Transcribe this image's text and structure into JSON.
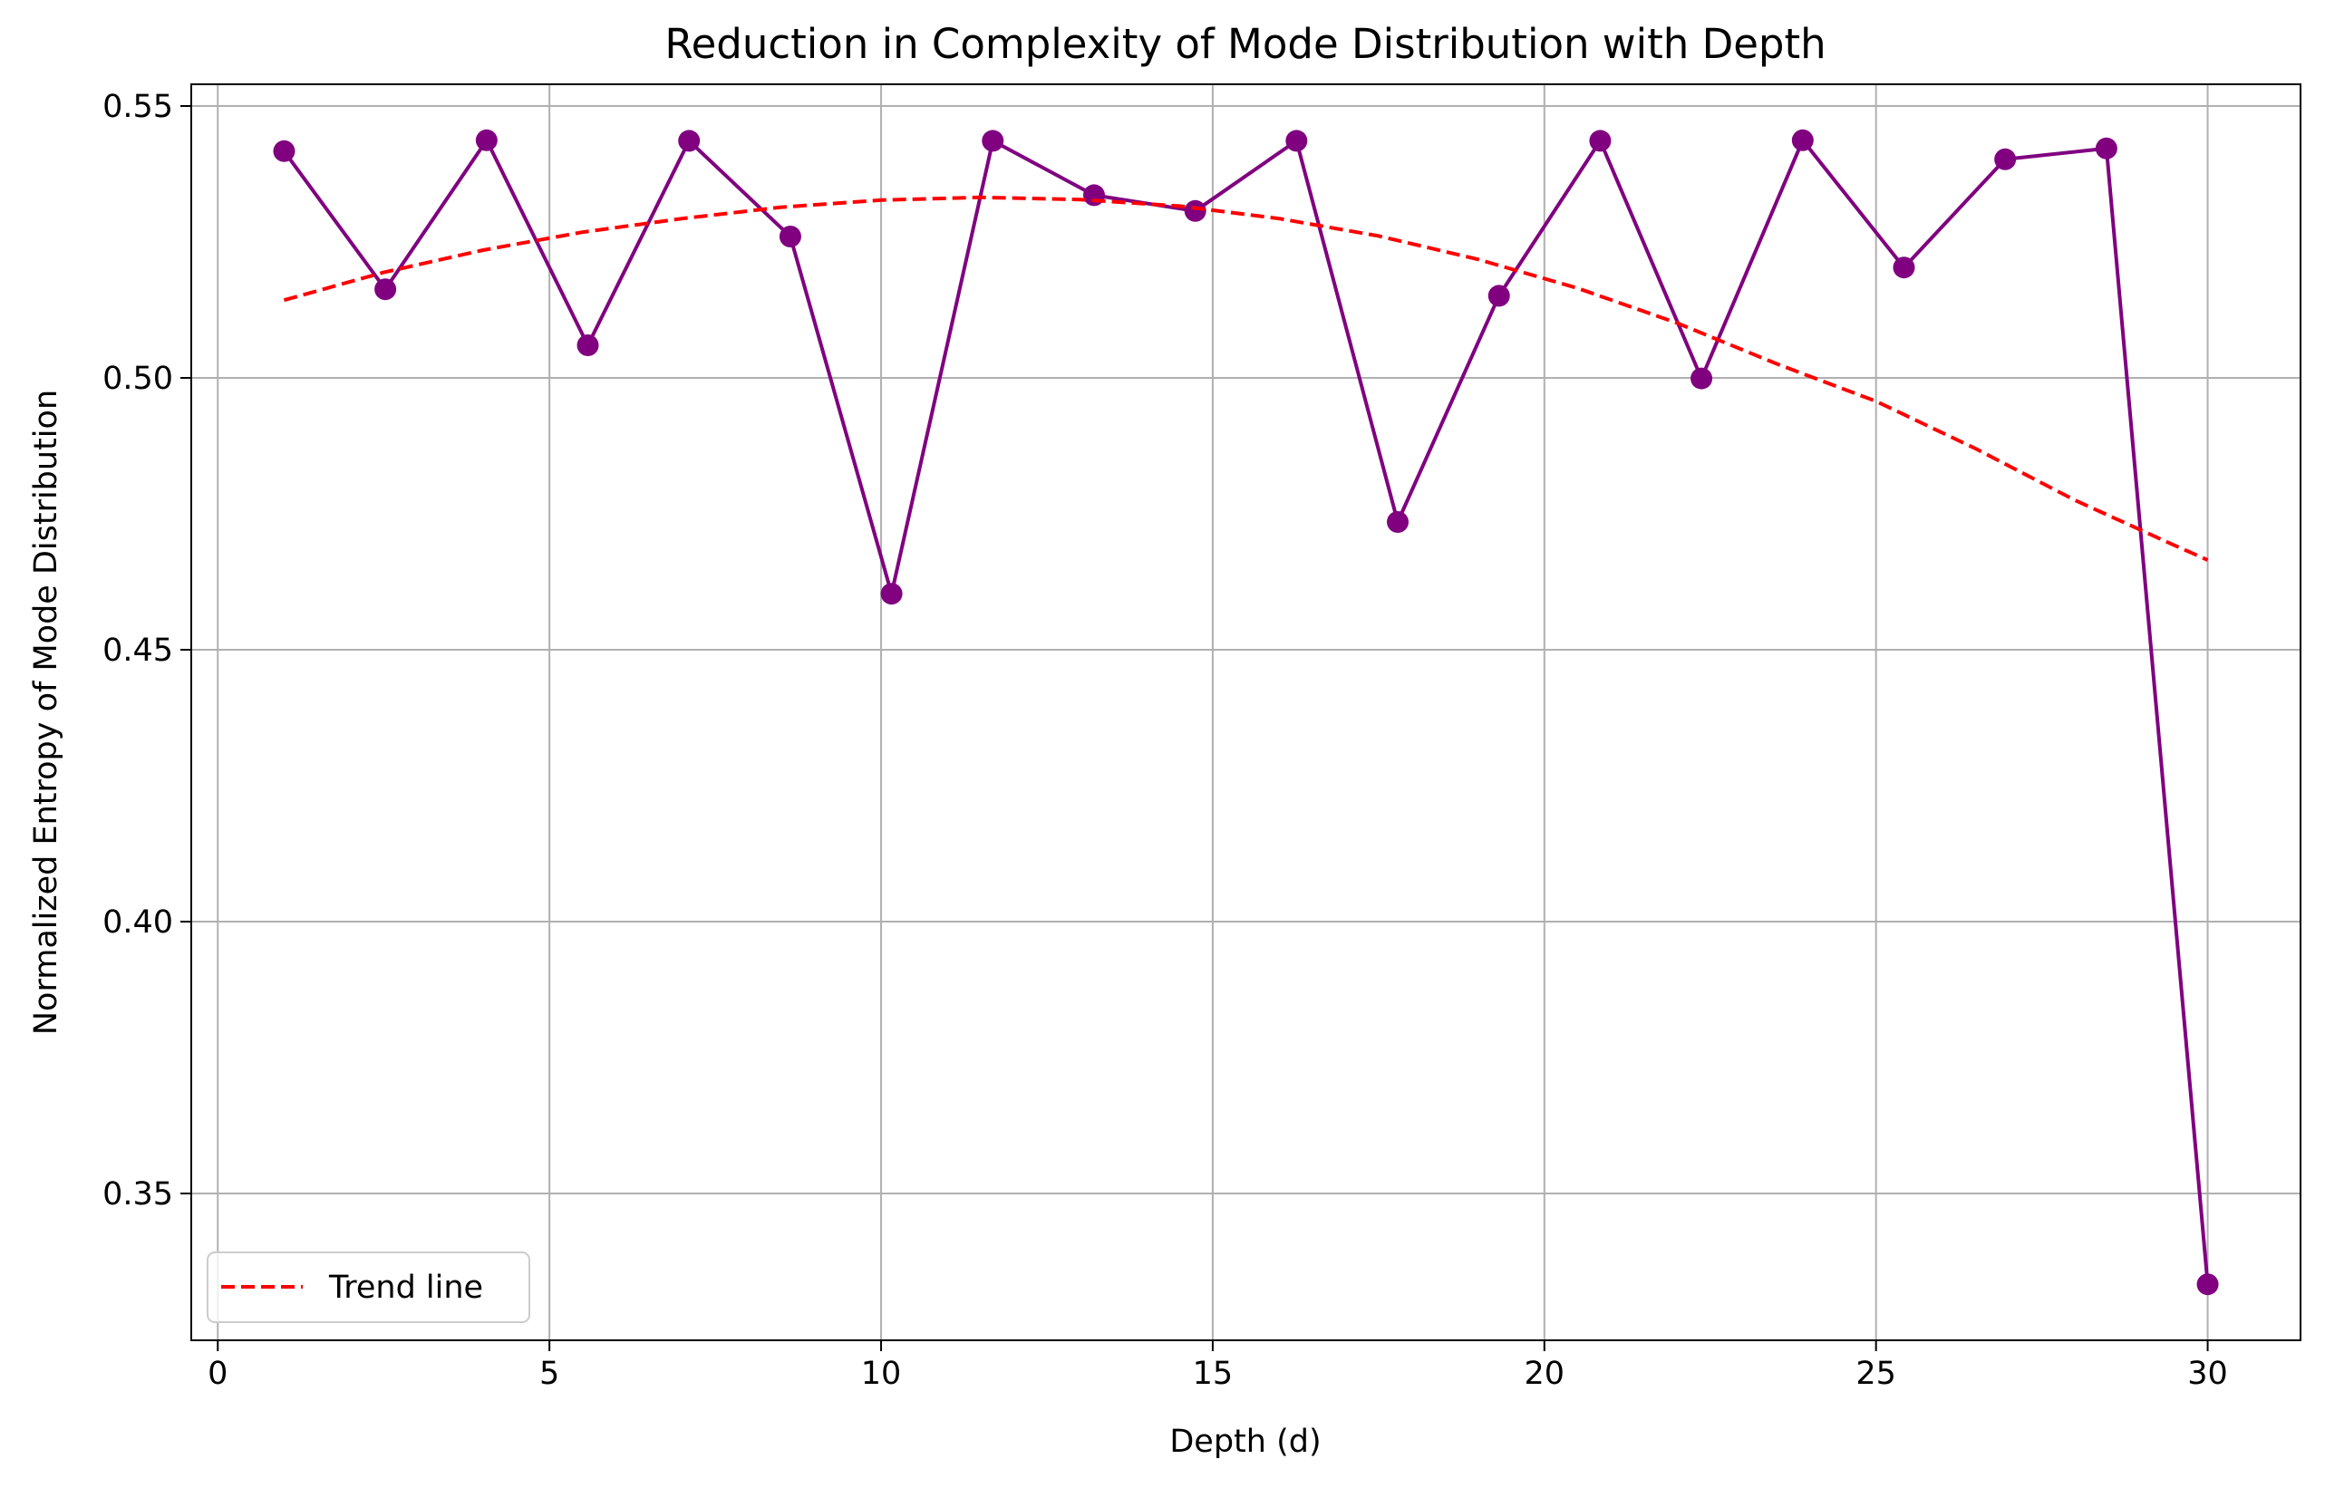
{
  "chart_data": {
    "type": "line",
    "title": "Reduction in Complexity of Mode Distribution with Depth",
    "xlabel": "Depth (d)",
    "ylabel": "Normalized Entropy of Mode Distribution",
    "xlim": [
      -0.4,
      31.4
    ],
    "ylim": [
      0.323,
      0.554
    ],
    "xticks": [
      0,
      5,
      10,
      15,
      20,
      25,
      30
    ],
    "yticks": [
      0.35,
      0.4,
      0.45,
      0.5,
      0.55
    ],
    "xtick_labels": [
      "0",
      "5",
      "10",
      "15",
      "20",
      "25",
      "30"
    ],
    "ytick_labels": [
      "0.35",
      "0.40",
      "0.45",
      "0.50",
      "0.55"
    ],
    "grid": true,
    "legend_position": "lower-left",
    "series": [
      {
        "kind": "data",
        "color": "#800080",
        "marker": "circle",
        "x": [
          1.0,
          2.526,
          4.053,
          5.579,
          7.105,
          8.632,
          10.158,
          11.684,
          13.211,
          14.737,
          16.263,
          17.789,
          19.316,
          20.842,
          22.368,
          23.895,
          25.421,
          26.947,
          28.474,
          30.0
        ],
        "y": [
          0.5417,
          0.5163,
          0.5437,
          0.506,
          0.5436,
          0.526,
          0.4603,
          0.5436,
          0.5336,
          0.5307,
          0.5436,
          0.4735,
          0.5151,
          0.5436,
          0.4999,
          0.5437,
          0.5203,
          0.5402,
          0.5422,
          0.3333
        ]
      },
      {
        "kind": "trend",
        "name": "Trend line",
        "color": "#ff0000",
        "dash": "dashed",
        "x": [
          1,
          2.5,
          4,
          5.5,
          7,
          8.5,
          10,
          11.5,
          13,
          14.5,
          16,
          17.5,
          19,
          20.5,
          22,
          23.5,
          25,
          26.5,
          28,
          29.5,
          30
        ],
        "y": [
          0.5143,
          0.5194,
          0.5235,
          0.5268,
          0.5293,
          0.5314,
          0.5327,
          0.5332,
          0.5328,
          0.5316,
          0.5293,
          0.5261,
          0.5218,
          0.5165,
          0.5101,
          0.5026,
          0.4957,
          0.487,
          0.4775,
          0.4692,
          0.4665
        ]
      }
    ]
  }
}
